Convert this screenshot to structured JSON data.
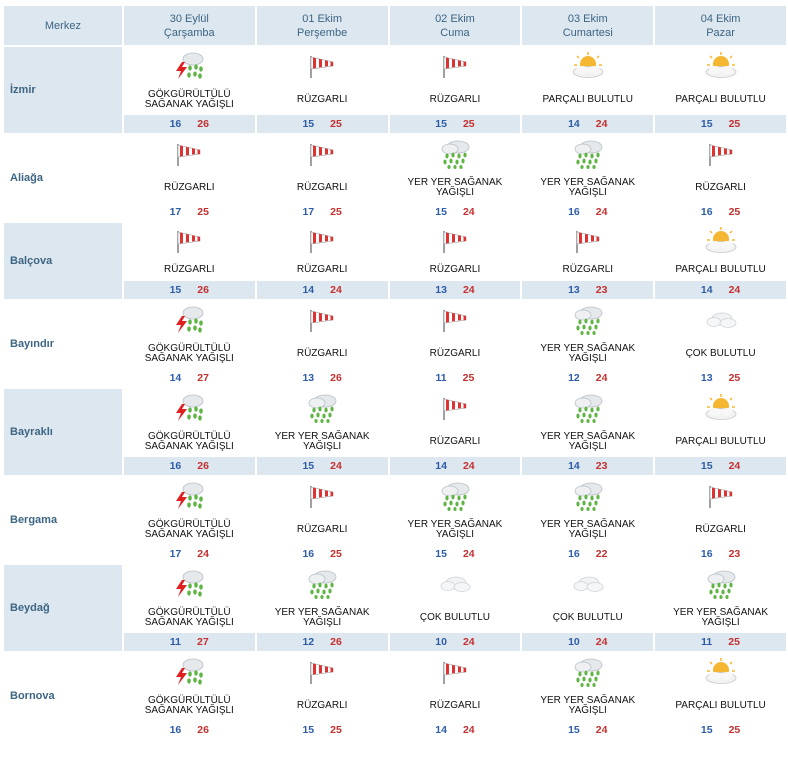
{
  "header": {
    "merkez": "Merkez",
    "days": [
      {
        "date": "30 Eylül",
        "weekday": "Çarşamba"
      },
      {
        "date": "01 Ekim",
        "weekday": "Perşembe"
      },
      {
        "date": "02 Ekim",
        "weekday": "Cuma"
      },
      {
        "date": "03 Ekim",
        "weekday": "Cumartesi"
      },
      {
        "date": "04 Ekim",
        "weekday": "Pazar"
      }
    ]
  },
  "colors": {
    "header_bg": "#dde7ef",
    "min_temp": "#2d5da8",
    "max_temp": "#c53030",
    "city_text": "#3d6584"
  },
  "rows": [
    {
      "city": "İzmir",
      "days": [
        {
          "icon": "thunder-rain-icon",
          "text": "GÖKGÜRÜLTÜLÜ SAĞANAK YAĞIŞLI",
          "min": "16",
          "max": "26"
        },
        {
          "icon": "windsock-icon",
          "text": "RÜZGARLI",
          "min": "15",
          "max": "25"
        },
        {
          "icon": "windsock-icon",
          "text": "RÜZGARLI",
          "min": "15",
          "max": "25"
        },
        {
          "icon": "partly-cloudy-icon",
          "text": "PARÇALI BULUTLU",
          "min": "14",
          "max": "24"
        },
        {
          "icon": "partly-cloudy-icon",
          "text": "PARÇALI BULUTLU",
          "min": "15",
          "max": "25"
        }
      ]
    },
    {
      "city": "Aliağa",
      "days": [
        {
          "icon": "windsock-icon",
          "text": "RÜZGARLI",
          "min": "17",
          "max": "25"
        },
        {
          "icon": "windsock-icon",
          "text": "RÜZGARLI",
          "min": "17",
          "max": "25"
        },
        {
          "icon": "showers-icon",
          "text": "YER YER SAĞANAK YAĞIŞLI",
          "min": "15",
          "max": "24"
        },
        {
          "icon": "showers-icon",
          "text": "YER YER SAĞANAK YAĞIŞLI",
          "min": "16",
          "max": "24"
        },
        {
          "icon": "windsock-icon",
          "text": "RÜZGARLI",
          "min": "16",
          "max": "25"
        }
      ]
    },
    {
      "city": "Balçova",
      "days": [
        {
          "icon": "windsock-icon",
          "text": "RÜZGARLI",
          "min": "15",
          "max": "26"
        },
        {
          "icon": "windsock-icon",
          "text": "RÜZGARLI",
          "min": "14",
          "max": "24"
        },
        {
          "icon": "windsock-icon",
          "text": "RÜZGARLI",
          "min": "13",
          "max": "24"
        },
        {
          "icon": "windsock-icon",
          "text": "RÜZGARLI",
          "min": "13",
          "max": "23"
        },
        {
          "icon": "partly-cloudy-icon",
          "text": "PARÇALI BULUTLU",
          "min": "14",
          "max": "24"
        }
      ]
    },
    {
      "city": "Bayındır",
      "days": [
        {
          "icon": "thunder-rain-icon",
          "text": "GÖKGÜRÜLTÜLÜ SAĞANAK YAĞIŞLI",
          "min": "14",
          "max": "27"
        },
        {
          "icon": "windsock-icon",
          "text": "RÜZGARLI",
          "min": "13",
          "max": "26"
        },
        {
          "icon": "windsock-icon",
          "text": "RÜZGARLI",
          "min": "11",
          "max": "25"
        },
        {
          "icon": "showers-icon",
          "text": "YER YER SAĞANAK YAĞIŞLI",
          "min": "12",
          "max": "24"
        },
        {
          "icon": "cloudy-icon",
          "text": "ÇOK BULUTLU",
          "min": "13",
          "max": "25"
        }
      ]
    },
    {
      "city": "Bayraklı",
      "days": [
        {
          "icon": "thunder-rain-icon",
          "text": "GÖKGÜRÜLTÜLÜ SAĞANAK YAĞIŞLI",
          "min": "16",
          "max": "26"
        },
        {
          "icon": "showers-icon",
          "text": "YER YER SAĞANAK YAĞIŞLI",
          "min": "15",
          "max": "24"
        },
        {
          "icon": "windsock-icon",
          "text": "RÜZGARLI",
          "min": "14",
          "max": "24"
        },
        {
          "icon": "showers-icon",
          "text": "YER YER SAĞANAK YAĞIŞLI",
          "min": "14",
          "max": "23"
        },
        {
          "icon": "partly-cloudy-icon",
          "text": "PARÇALI BULUTLU",
          "min": "15",
          "max": "24"
        }
      ]
    },
    {
      "city": "Bergama",
      "days": [
        {
          "icon": "thunder-rain-icon",
          "text": "GÖKGÜRÜLTÜLÜ SAĞANAK YAĞIŞLI",
          "min": "17",
          "max": "24"
        },
        {
          "icon": "windsock-icon",
          "text": "RÜZGARLI",
          "min": "16",
          "max": "25"
        },
        {
          "icon": "showers-icon",
          "text": "YER YER SAĞANAK YAĞIŞLI",
          "min": "15",
          "max": "24"
        },
        {
          "icon": "showers-icon",
          "text": "YER YER SAĞANAK YAĞIŞLI",
          "min": "16",
          "max": "22"
        },
        {
          "icon": "windsock-icon",
          "text": "RÜZGARLI",
          "min": "16",
          "max": "23"
        }
      ]
    },
    {
      "city": "Beydağ",
      "days": [
        {
          "icon": "thunder-rain-icon",
          "text": "GÖKGÜRÜLTÜLÜ SAĞANAK YAĞIŞLI",
          "min": "11",
          "max": "27"
        },
        {
          "icon": "showers-icon",
          "text": "YER YER SAĞANAK YAĞIŞLI",
          "min": "12",
          "max": "26"
        },
        {
          "icon": "cloudy-icon",
          "text": "ÇOK BULUTLU",
          "min": "10",
          "max": "24"
        },
        {
          "icon": "cloudy-icon",
          "text": "ÇOK BULUTLU",
          "min": "10",
          "max": "24"
        },
        {
          "icon": "showers-icon",
          "text": "YER YER SAĞANAK YAĞIŞLI",
          "min": "11",
          "max": "25"
        }
      ]
    },
    {
      "city": "Bornova",
      "days": [
        {
          "icon": "thunder-rain-icon",
          "text": "GÖKGÜRÜLTÜLÜ SAĞANAK YAĞIŞLI",
          "min": "16",
          "max": "26"
        },
        {
          "icon": "windsock-icon",
          "text": "RÜZGARLI",
          "min": "15",
          "max": "25"
        },
        {
          "icon": "windsock-icon",
          "text": "RÜZGARLI",
          "min": "14",
          "max": "24"
        },
        {
          "icon": "showers-icon",
          "text": "YER YER SAĞANAK YAĞIŞLI",
          "min": "15",
          "max": "24"
        },
        {
          "icon": "partly-cloudy-icon",
          "text": "PARÇALI BULUTLU",
          "min": "15",
          "max": "25"
        }
      ]
    }
  ]
}
